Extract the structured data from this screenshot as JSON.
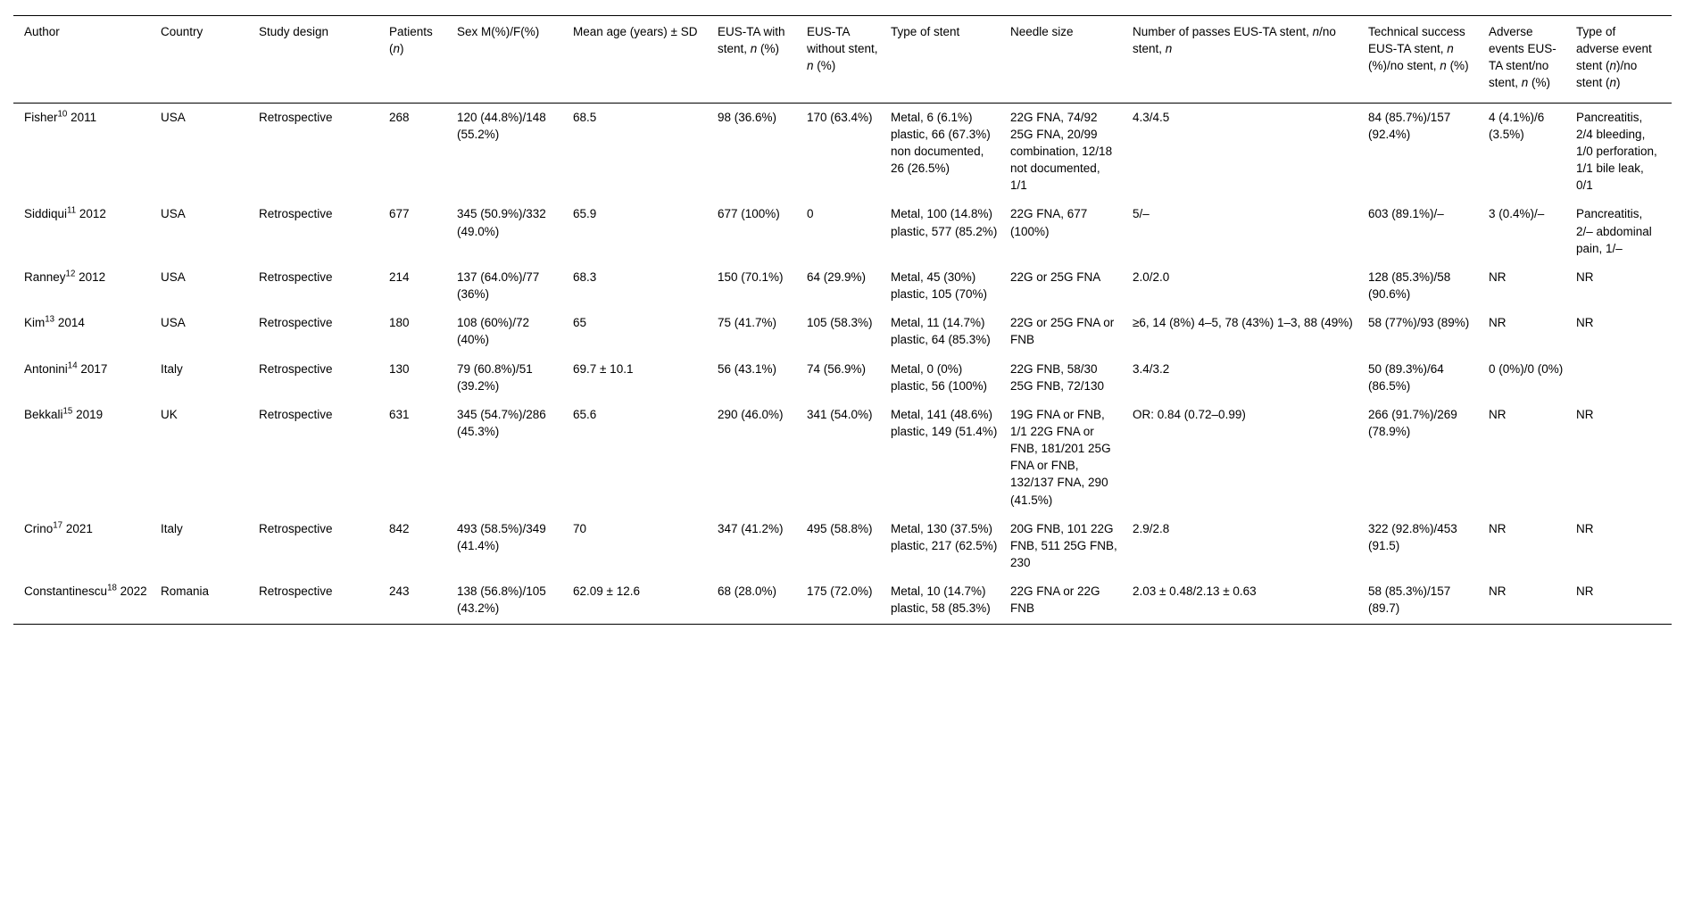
{
  "style": {
    "background_color": "#ffffff",
    "text_color": "#000000",
    "rule_color": "#000000"
  },
  "table": {
    "columns": [
      "Author",
      "Country",
      "Study design",
      "Patients (n)",
      "Sex M(%)/F(%)",
      "Mean age (years) ± SD",
      "EUS-TA with stent, n (%)",
      "EUS-TA without stent, n (%)",
      "Type of stent",
      "Needle size",
      "Number of passes EUS-TA stent, n/no stent, n",
      "Technical success EUS-TA stent, n (%)/no stent, n (%)",
      "Adverse events EUS-TA stent/no stent, n (%)",
      "Type of adverse event stent (n)/no stent (n)"
    ],
    "rows": [
      {
        "author_name": "Fisher",
        "author_ref": "10",
        "author_year": "2011",
        "country": "USA",
        "design": "Retrospective",
        "patients": "268",
        "sex": "120 (44.8%)/148 (55.2%)",
        "age": "68.5",
        "with_stent": "98 (36.6%)",
        "without_stent": "170 (63.4%)",
        "stent_type": "Metal, 6 (6.1%) plastic, 66 (67.3%) non documented, 26 (26.5%)",
        "needle": "22G FNA, 74/92 25G FNA, 20/99 combination, 12/18 not documented, 1/1",
        "passes": "4.3/4.5",
        "success": "84 (85.7%)/157 (92.4%)",
        "adverse": "4 (4.1%)/6 (3.5%)",
        "adverse_type": "Pancreatitis, 2/4 bleeding, 1/0 perforation, 1/1 bile leak, 0/1"
      },
      {
        "author_name": "Siddiqui",
        "author_ref": "11",
        "author_year": "2012",
        "country": "USA",
        "design": "Retrospective",
        "patients": "677",
        "sex": "345 (50.9%)/332 (49.0%)",
        "age": "65.9",
        "with_stent": "677 (100%)",
        "without_stent": "0",
        "stent_type": "Metal, 100 (14.8%) plastic, 577 (85.2%)",
        "needle": "22G FNA, 677 (100%)",
        "passes": "5/–",
        "success": "603 (89.1%)/–",
        "adverse": "3 (0.4%)/–",
        "adverse_type": "Pancreatitis, 2/– abdominal pain, 1/–"
      },
      {
        "author_name": "Ranney",
        "author_ref": "12",
        "author_year": "2012",
        "country": "USA",
        "design": "Retrospective",
        "patients": "214",
        "sex": "137 (64.0%)/77 (36%)",
        "age": "68.3",
        "with_stent": "150 (70.1%)",
        "without_stent": "64 (29.9%)",
        "stent_type": "Metal, 45 (30%) plastic, 105 (70%)",
        "needle": "22G or 25G FNA",
        "passes": "2.0/2.0",
        "success": "128 (85.3%)/58 (90.6%)",
        "adverse": "NR",
        "adverse_type": "NR"
      },
      {
        "author_name": "Kim",
        "author_ref": "13",
        "author_year": "2014",
        "country": "USA",
        "design": "Retrospective",
        "patients": "180",
        "sex": "108 (60%)/72 (40%)",
        "age": "65",
        "with_stent": "75 (41.7%)",
        "without_stent": "105 (58.3%)",
        "stent_type": "Metal, 11 (14.7%) plastic, 64 (85.3%)",
        "needle": "22G or 25G FNA or FNB",
        "passes": "≥6, 14 (8%) 4–5, 78 (43%) 1–3, 88 (49%)",
        "success": "58 (77%)/93 (89%)",
        "adverse": "NR",
        "adverse_type": "NR"
      },
      {
        "author_name": "Antonini",
        "author_ref": "14",
        "author_year": "2017",
        "country": "Italy",
        "design": "Retrospective",
        "patients": "130",
        "sex": "79 (60.8%)/51 (39.2%)",
        "age": "69.7 ± 10.1",
        "with_stent": "56 (43.1%)",
        "without_stent": "74 (56.9%)",
        "stent_type": "Metal, 0 (0%) plastic, 56 (100%)",
        "needle": "22G FNB, 58/30 25G FNB, 72/130",
        "passes": "3.4/3.2",
        "success": "50 (89.3%)/64 (86.5%)",
        "adverse": "0 (0%)/0 (0%)",
        "adverse_type": ""
      },
      {
        "author_name": "Bekkali",
        "author_ref": "15",
        "author_year": "2019",
        "country": "UK",
        "design": "Retrospective",
        "patients": "631",
        "sex": "345 (54.7%)/286 (45.3%)",
        "age": "65.6",
        "with_stent": "290 (46.0%)",
        "without_stent": "341 (54.0%)",
        "stent_type": "Metal, 141 (48.6%) plastic, 149 (51.4%)",
        "needle": "19G FNA or FNB, 1/1 22G FNA or FNB, 181/201 25G FNA or FNB, 132/137 FNA, 290 (41.5%)",
        "passes": "OR: 0.84 (0.72–0.99)",
        "success": "266 (91.7%)/269 (78.9%)",
        "adverse": "NR",
        "adverse_type": "NR"
      },
      {
        "author_name": "Crino",
        "author_ref": "17",
        "author_year": "2021",
        "country": "Italy",
        "design": "Retrospective",
        "patients": "842",
        "sex": "493 (58.5%)/349 (41.4%)",
        "age": "70",
        "with_stent": "347 (41.2%)",
        "without_stent": "495 (58.8%)",
        "stent_type": "Metal, 130 (37.5%) plastic, 217 (62.5%)",
        "needle": "20G FNB, 101 22G FNB, 511 25G FNB, 230",
        "passes": "2.9/2.8",
        "success": "322 (92.8%)/453 (91.5)",
        "adverse": "NR",
        "adverse_type": "NR"
      },
      {
        "author_name": "Constantinescu",
        "author_ref": "18",
        "author_year": "2022",
        "country": "Romania",
        "design": "Retrospective",
        "patients": "243",
        "sex": "138 (56.8%)/105 (43.2%)",
        "age": "62.09 ± 12.6",
        "with_stent": "68 (28.0%)",
        "without_stent": "175 (72.0%)",
        "stent_type": "Metal, 10 (14.7%) plastic, 58 (85.3%)",
        "needle": "22G FNA or 22G FNB",
        "passes": "2.03 ± 0.48/2.13 ± 0.63",
        "success": "58 (85.3%)/157 (89.7)",
        "adverse": "NR",
        "adverse_type": "NR"
      }
    ]
  }
}
